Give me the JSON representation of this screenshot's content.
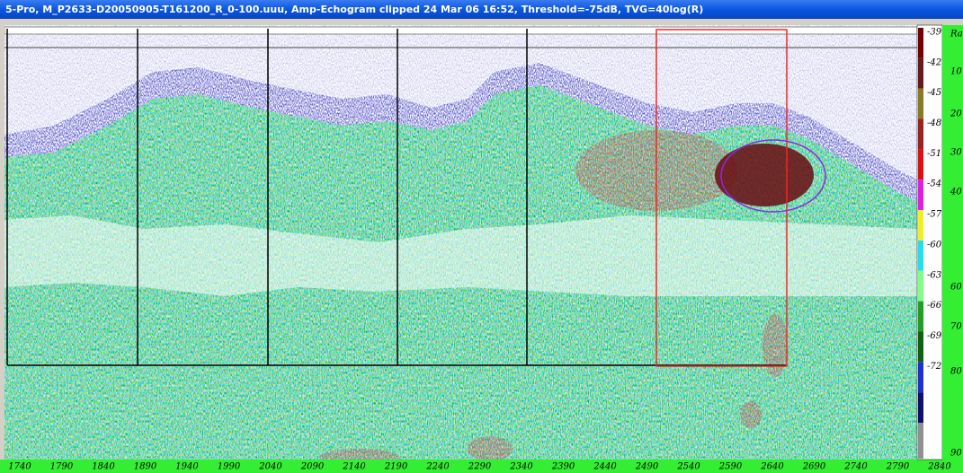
{
  "window": {
    "title": "5-Pro, M_P2633-D20050905-T161200_R_0-100.uuu, Amp-Echogram clipped 24 Mar 06 16:52, Threshold=-75dB, TVG=40log(R)"
  },
  "x_axis": {
    "labels": [
      "1740",
      "1790",
      "1840",
      "1890",
      "1940",
      "1990",
      "2040",
      "2090",
      "2140",
      "2190",
      "2240",
      "2290",
      "2340",
      "2390",
      "2440",
      "2490",
      "2540",
      "2590",
      "2640",
      "2690",
      "2740",
      "2790",
      "2840"
    ]
  },
  "color_scale": {
    "labels": [
      "-39",
      "-42",
      "-45",
      "-48",
      "-51",
      "-54",
      "-57",
      "-60",
      "-63",
      "-66",
      "-69",
      "-72"
    ]
  },
  "range_axis": {
    "labels": [
      "Ra",
      "10",
      "20",
      "30",
      "40",
      "60",
      "70",
      "80",
      "90"
    ]
  }
}
